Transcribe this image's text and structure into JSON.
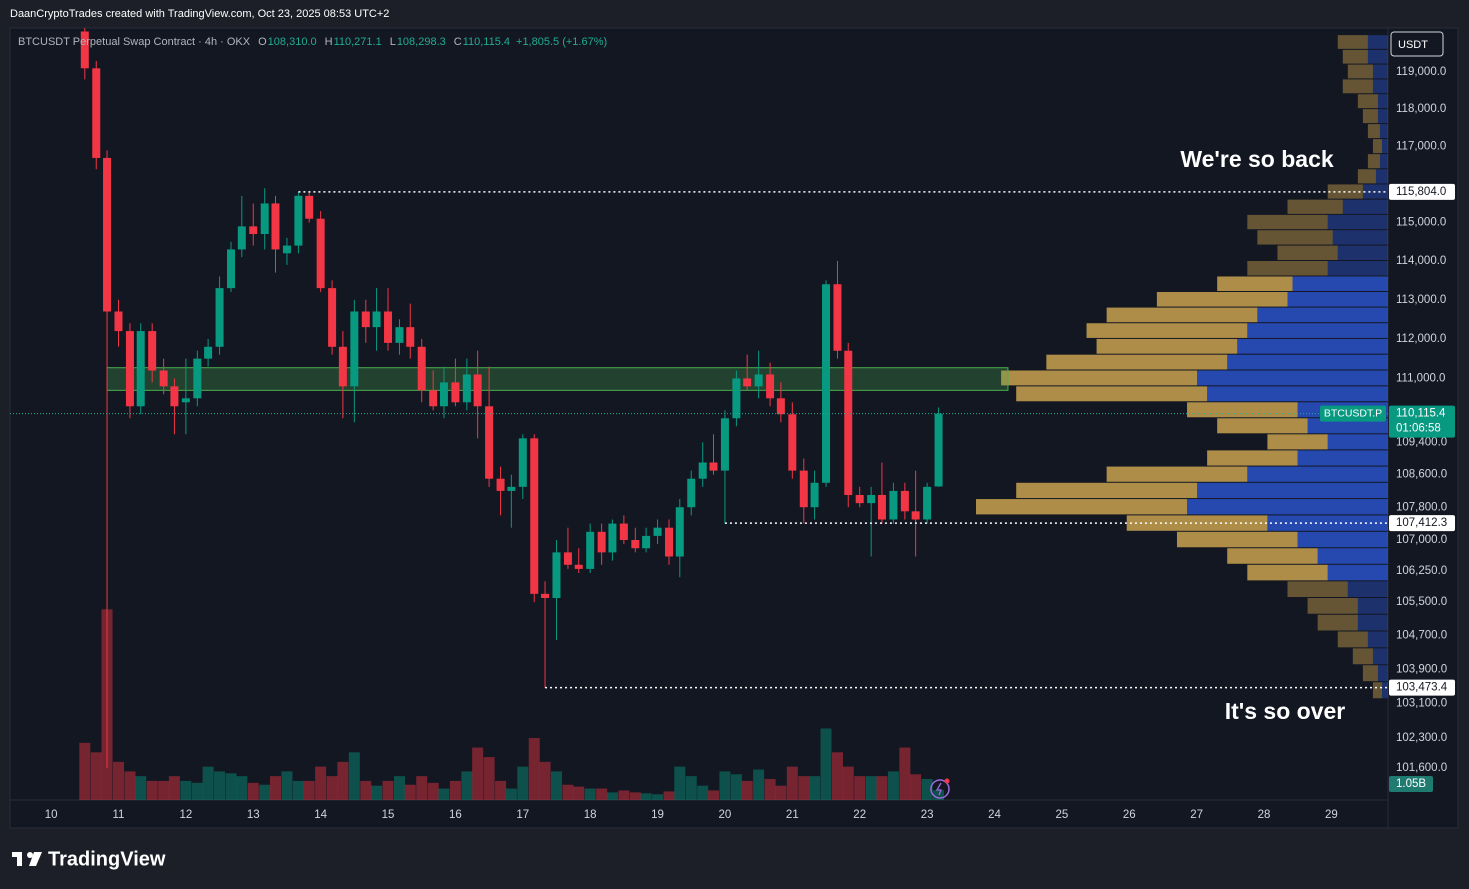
{
  "header": {
    "credit": "DaanCryptoTrades created with TradingView.com, Oct 23, 2025 08:53 UTC+2",
    "symbol": "BTCUSDT Perpetual Swap Contract · 4h · OKX",
    "ohlc": [
      {
        "key": "O",
        "label": "108,310.0"
      },
      {
        "key": "H",
        "label": "110,271.1"
      },
      {
        "key": "L",
        "label": "108,298.3"
      },
      {
        "key": "C",
        "label": "110,115.4"
      }
    ],
    "change": "+1,805.5 (+1.67%)"
  },
  "footer": {
    "brand": "TradingView"
  },
  "chart_data": {
    "type": "candlestick",
    "currency": "USDT",
    "up_color": "#089981",
    "down_color": "#f23645",
    "x": [
      10.5,
      10.67,
      10.83,
      11,
      11.17,
      11.33,
      11.5,
      11.67,
      11.83,
      12,
      12.17,
      12.33,
      12.5,
      12.67,
      12.83,
      13,
      13.17,
      13.33,
      13.5,
      13.67,
      13.83,
      14,
      14.17,
      14.33,
      14.5,
      14.67,
      14.83,
      15,
      15.17,
      15.33,
      15.5,
      15.67,
      15.83,
      16,
      16.17,
      16.33,
      16.5,
      16.67,
      16.83,
      17,
      17.17,
      17.33,
      17.5,
      17.67,
      17.83,
      18,
      18.17,
      18.33,
      18.5,
      18.67,
      18.83,
      19,
      19.17,
      19.33,
      19.5,
      19.67,
      19.83,
      20,
      20.17,
      20.33,
      20.5,
      20.67,
      20.83,
      21,
      21.17,
      21.33,
      21.5,
      21.67,
      21.83,
      22,
      22.17,
      22.33,
      22.5,
      22.67,
      22.83,
      23,
      23.17
    ],
    "open": [
      120100,
      119100,
      116700,
      112700,
      112200,
      110300,
      112200,
      111200,
      110800,
      110400,
      110500,
      111500,
      111800,
      113300,
      114300,
      114900,
      114700,
      115500,
      114200,
      114400,
      115700,
      115100,
      113300,
      111800,
      110800,
      112700,
      112300,
      112700,
      111900,
      112300,
      111800,
      110700,
      110300,
      110900,
      110400,
      111100,
      110300,
      108500,
      108200,
      108300,
      109500,
      105700,
      105600,
      106700,
      106400,
      106300,
      107200,
      106700,
      107400,
      107000,
      106800,
      107100,
      107300,
      106600,
      107800,
      108500,
      108900,
      108700,
      110000,
      111000,
      110800,
      111100,
      110500,
      110100,
      108700,
      107800,
      108400,
      113400,
      111700,
      108100,
      107900,
      108100,
      107500,
      108200,
      107700,
      107500,
      108310
    ],
    "high": [
      120195,
      119300,
      116900,
      113000,
      112400,
      112400,
      112400,
      111500,
      111000,
      111500,
      111700,
      112000,
      113600,
      114500,
      115700,
      115500,
      115900,
      115700,
      114600,
      115800,
      115800,
      115300,
      113500,
      112200,
      113000,
      113000,
      113300,
      113300,
      112500,
      112900,
      112000,
      111200,
      111300,
      111500,
      111500,
      111700,
      111300,
      108800,
      108600,
      109600,
      109600,
      106000,
      107000,
      107300,
      106800,
      107400,
      107400,
      107500,
      107600,
      107300,
      107300,
      107500,
      107500,
      108000,
      108700,
      109400,
      109600,
      110200,
      111200,
      111600,
      111700,
      111400,
      110900,
      110400,
      109000,
      108700,
      113500,
      114000,
      111900,
      108300,
      108300,
      108900,
      108400,
      108400,
      108700,
      108400,
      110271.1
    ],
    "low": [
      118800,
      116400,
      101600,
      111800,
      110000,
      110100,
      110900,
      110600,
      109600,
      109600,
      110300,
      111300,
      111600,
      113200,
      114100,
      114400,
      114300,
      113700,
      113900,
      114200,
      115000,
      113200,
      111600,
      110000,
      109900,
      111900,
      111700,
      111700,
      111600,
      111500,
      110400,
      110200,
      110000,
      110300,
      110200,
      109500,
      108300,
      107600,
      107300,
      108000,
      105500,
      103473.4,
      104600,
      106300,
      106200,
      106200,
      106400,
      106500,
      106900,
      106700,
      106700,
      106900,
      106400,
      106100,
      107600,
      108300,
      108600,
      107400,
      109800,
      110700,
      110500,
      110300,
      109900,
      108500,
      107400,
      107500,
      108300,
      111500,
      107800,
      107800,
      106600,
      107400,
      107400,
      107500,
      106600,
      107400,
      108298.3
    ],
    "close": [
      119100,
      116700,
      112700,
      112200,
      110300,
      112200,
      111200,
      110800,
      110300,
      110500,
      111500,
      111800,
      113300,
      114300,
      114900,
      114700,
      115500,
      114300,
      114400,
      115700,
      115100,
      113300,
      111800,
      110800,
      112700,
      112300,
      112700,
      111900,
      112300,
      111800,
      110700,
      110300,
      110900,
      110400,
      111100,
      110300,
      108500,
      108200,
      108300,
      109500,
      105700,
      105600,
      106700,
      106400,
      106300,
      107200,
      106700,
      107400,
      107000,
      106800,
      107100,
      107300,
      106600,
      107800,
      108500,
      108900,
      108700,
      110000,
      111000,
      110800,
      111100,
      110500,
      110100,
      108700,
      107800,
      108400,
      113400,
      111700,
      108100,
      107900,
      108100,
      107500,
      108200,
      107700,
      107500,
      108300,
      110115.4
    ],
    "xlim": [
      9.39,
      29.84
    ],
    "xticks": [
      10,
      11,
      12,
      13,
      14,
      15,
      16,
      17,
      18,
      19,
      20,
      21,
      22,
      23,
      24,
      25,
      26,
      27,
      28,
      29
    ],
    "ylim": [
      100865,
      120195
    ],
    "log_scale": true,
    "grid": false,
    "yticks": [
      {
        "value": 119000,
        "label": "119,000.0"
      },
      {
        "value": 118000,
        "label": "118,000.0"
      },
      {
        "value": 117000,
        "label": "117,000.0"
      },
      {
        "value": 115000,
        "label": "115,000.0"
      },
      {
        "value": 114000,
        "label": "114,000.0"
      },
      {
        "value": 113000,
        "label": "113,000.0"
      },
      {
        "value": 112000,
        "label": "112,000.0"
      },
      {
        "value": 111000,
        "label": "111,000.0"
      },
      {
        "value": 109400,
        "label": "109,400.0"
      },
      {
        "value": 108600,
        "label": "108,600.0"
      },
      {
        "value": 107800,
        "label": "107,800.0"
      },
      {
        "value": 107000,
        "label": "107,000.0"
      },
      {
        "value": 106250,
        "label": "106,250.0"
      },
      {
        "value": 105500,
        "label": "105,500.0"
      },
      {
        "value": 104700,
        "label": "104,700.0"
      },
      {
        "value": 103900,
        "label": "103,900.0"
      },
      {
        "value": 103100,
        "label": "103,100.0"
      },
      {
        "value": 102300,
        "label": "102,300.0"
      },
      {
        "value": 101600,
        "label": "101,600.0"
      }
    ],
    "volume": {
      "values": [
        6,
        5,
        20,
        4,
        3,
        2.5,
        2,
        2,
        2.5,
        2,
        1.8,
        3.5,
        3,
        2.8,
        2.5,
        1.8,
        1.6,
        2.5,
        3,
        2,
        2,
        3.5,
        2.5,
        4,
        5,
        2,
        1.5,
        2,
        2.5,
        1.6,
        2.5,
        1.8,
        1.2,
        2,
        3,
        5.5,
        4.5,
        2,
        1.2,
        3.5,
        6.5,
        4,
        3,
        1.6,
        1.4,
        1.2,
        1.2,
        0.8,
        1,
        0.8,
        0.7,
        0.6,
        0.9,
        3.5,
        2.5,
        1.5,
        1,
        3,
        2.7,
        2,
        3.2,
        2.2,
        1.5,
        3.5,
        2.5,
        2.5,
        7.5,
        5,
        3.5,
        2.5,
        2.5,
        2.5,
        3,
        5.5,
        2.7,
        2.2,
        1.05
      ],
      "value_labels": [
        null,
        null,
        null,
        null,
        null,
        null,
        null,
        null,
        null,
        null,
        null,
        null,
        null,
        null,
        null,
        null,
        null,
        null,
        null,
        null,
        null,
        null,
        null,
        null,
        null,
        null,
        null,
        null,
        null,
        null,
        null,
        null,
        null,
        null,
        null,
        null,
        null,
        null,
        null,
        null,
        null,
        null,
        null,
        null,
        null,
        null,
        null,
        null,
        null,
        null,
        null,
        null,
        null,
        null,
        null,
        null,
        null,
        null,
        null,
        null,
        null,
        null,
        null,
        null,
        null,
        null,
        null,
        null,
        null,
        null,
        null,
        null,
        null,
        null,
        null,
        null,
        "1.05B"
      ],
      "ylim": [
        0,
        30
      ]
    },
    "profile": {
      "prices": [
        119800,
        119400,
        119000,
        118600,
        118200,
        117800,
        117400,
        117000,
        116600,
        116200,
        115800,
        115400,
        115000,
        114600,
        114200,
        113800,
        113400,
        113000,
        112600,
        112200,
        111800,
        111400,
        111000,
        110600,
        110200,
        109800,
        109400,
        109000,
        108600,
        108200,
        107800,
        107400,
        107000,
        106600,
        106200,
        105800,
        105400,
        105000,
        104600,
        104200,
        103800,
        103400
      ],
      "up": [
        20,
        20,
        15,
        15,
        10,
        10,
        8,
        6,
        8,
        12,
        25,
        45,
        60,
        55,
        50,
        60,
        95,
        100,
        130,
        140,
        150,
        160,
        190,
        180,
        90,
        80,
        60,
        90,
        140,
        190,
        200,
        120,
        90,
        70,
        60,
        40,
        30,
        30,
        20,
        15,
        10,
        6
      ],
      "down": [
        30,
        25,
        25,
        30,
        20,
        15,
        12,
        9,
        12,
        18,
        35,
        55,
        80,
        75,
        60,
        80,
        75,
        130,
        150,
        160,
        140,
        180,
        195,
        190,
        110,
        90,
        60,
        90,
        140,
        180,
        210,
        140,
        120,
        90,
        80,
        60,
        50,
        40,
        30,
        20,
        15,
        9
      ],
      "up_color": "#2a52c9",
      "down_color": "#c9a24d",
      "value_area": [
        106000,
        113400
      ]
    },
    "zone": {
      "low": 110700,
      "high": 111270,
      "x": [
        10.83,
        24.2
      ],
      "color": "#4caf50"
    },
    "levels": [
      {
        "value": 115804.0,
        "label": "115,804.0",
        "from": 13.67
      },
      {
        "value": 107412.3,
        "label": "107,412.3",
        "from": 20.0
      },
      {
        "value": 103473.4,
        "label": "103,473.4",
        "from": 17.33
      }
    ],
    "last_price": {
      "value": 110115.4,
      "label": "110,115.4",
      "symbol": "BTCUSDT.P",
      "countdown": "01:06:58"
    },
    "annotations": [
      "We're so back",
      "It's so over"
    ]
  }
}
